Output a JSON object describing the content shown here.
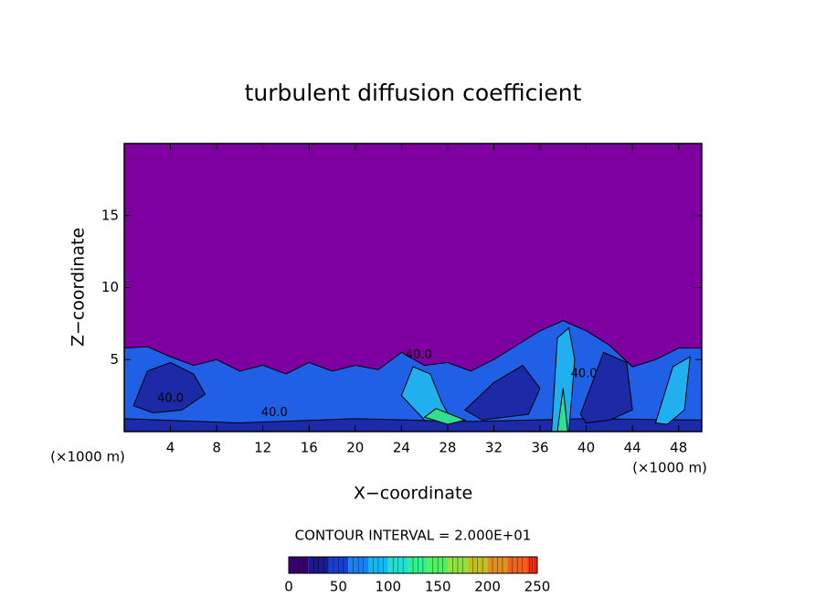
{
  "chart_data": {
    "type": "contour",
    "title": "turbulent diffusion coefficient",
    "xlabel": "X−coordinate",
    "ylabel": "Z−coordinate",
    "xunit": "(×1000 m)",
    "xlim": [
      0,
      50
    ],
    "ylim": [
      0,
      20
    ],
    "xticks": [
      4,
      8,
      12,
      16,
      20,
      24,
      28,
      32,
      36,
      40,
      44,
      48
    ],
    "yticks": [
      5,
      10,
      15
    ],
    "background": {
      "level": 0,
      "color": "#7f00a0"
    },
    "regions": [
      {
        "level": 40,
        "color": "#1f60e6",
        "x": [
          0,
          2,
          4,
          6,
          8,
          10,
          12,
          14,
          16,
          18,
          20,
          22,
          24,
          26,
          28,
          30,
          32,
          34,
          36,
          38,
          40,
          42,
          44,
          46,
          48,
          50,
          50,
          0
        ],
        "z": [
          5.8,
          5.9,
          5.2,
          4.6,
          5.0,
          4.2,
          4.6,
          4.0,
          4.8,
          4.2,
          4.6,
          4.3,
          5.5,
          4.6,
          4.8,
          4.2,
          5.0,
          6.0,
          7.0,
          7.7,
          7.0,
          6.0,
          4.5,
          5.0,
          5.8,
          5.8,
          0,
          0
        ]
      },
      {
        "level": 20,
        "color": "#1c2aa8",
        "x": [
          0.8,
          2,
          4,
          6,
          7,
          5,
          2.5
        ],
        "z": [
          1.8,
          4.2,
          4.8,
          4.0,
          2.6,
          1.5,
          1.3
        ]
      },
      {
        "level": 20,
        "color": "#1c2aa8",
        "x": [
          0,
          10,
          20,
          30,
          40,
          50,
          50,
          0
        ],
        "z": [
          0.9,
          0.6,
          0.9,
          0.7,
          0.9,
          0.8,
          0,
          0
        ]
      },
      {
        "level": 20,
        "color": "#1c2aa8",
        "x": [
          29.5,
          32,
          34.5,
          36,
          35,
          31
        ],
        "z": [
          1.5,
          3.4,
          4.6,
          3.0,
          1.2,
          0.8
        ]
      },
      {
        "level": 20,
        "color": "#1c2aa8",
        "x": [
          39.5,
          41.5,
          43.5,
          44,
          42,
          40
        ],
        "z": [
          1.2,
          5.5,
          4.8,
          1.5,
          0.8,
          0.6
        ]
      },
      {
        "level": 60,
        "color": "#20b0f0",
        "x": [
          37,
          37.5,
          38.5,
          39,
          38.5
        ],
        "z": [
          0,
          6.5,
          7.2,
          5.0,
          0
        ]
      },
      {
        "level": 60,
        "color": "#20b0f0",
        "x": [
          24,
          25,
          26.5,
          27.5,
          28.5,
          26
        ],
        "z": [
          2.5,
          4.5,
          4.0,
          2.0,
          0.6,
          0.8
        ]
      },
      {
        "level": 60,
        "color": "#20b0f0",
        "x": [
          46,
          47.5,
          49,
          48.5,
          47
        ],
        "z": [
          0.6,
          4.5,
          5.2,
          1.5,
          0.5
        ]
      },
      {
        "level": 100,
        "color": "#30e090",
        "x": [
          37.5,
          38,
          38.4
        ],
        "z": [
          0,
          3.0,
          0
        ]
      },
      {
        "level": 100,
        "color": "#30e090",
        "x": [
          26,
          28,
          29.5,
          27
        ],
        "z": [
          1.0,
          0.5,
          0.8,
          1.6
        ]
      }
    ],
    "contour_labels": [
      {
        "x": 4,
        "z": 2.3,
        "value": 40,
        "label": "40.0"
      },
      {
        "x": 13,
        "z": 1.3,
        "value": 40,
        "label": "40.0"
      },
      {
        "x": 25.5,
        "z": 5.3,
        "value": 40,
        "label": "40.0"
      },
      {
        "x": 39.8,
        "z": 4.0,
        "value": 40,
        "label": "40.0"
      }
    ],
    "contour_interval": "CONTOUR INTERVAL = 2.000E+01",
    "colorbar": {
      "lim": [
        0,
        250
      ],
      "ticks": [
        0,
        50,
        100,
        150,
        200,
        250
      ],
      "levels": [
        0,
        20,
        40,
        60,
        80,
        100,
        120,
        140,
        160,
        180,
        200,
        220,
        240
      ],
      "colors": [
        "#3a0070",
        "#1a1a8a",
        "#1840d0",
        "#1a80f0",
        "#10b8f0",
        "#20e0d0",
        "#30f090",
        "#50f060",
        "#90e040",
        "#c0c020",
        "#e09020",
        "#f06020",
        "#ff3010"
      ]
    }
  }
}
